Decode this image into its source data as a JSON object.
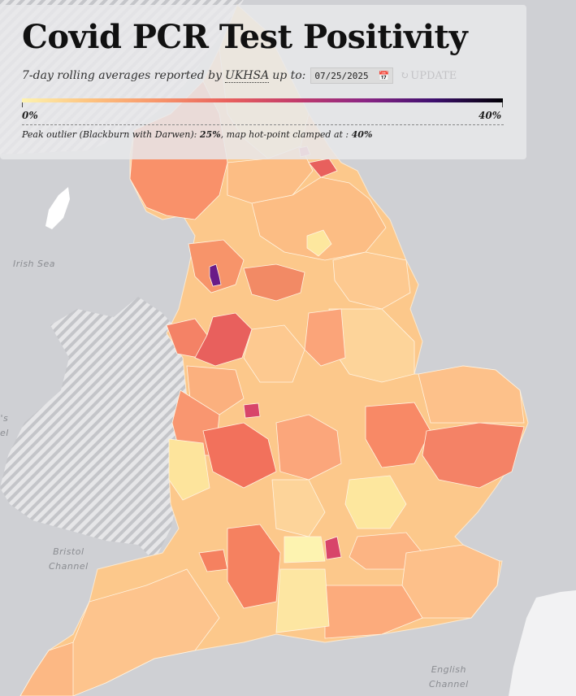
{
  "title": "Covid PCR Test Positivity",
  "subtitle": {
    "prefix": "7-day rolling averages reported by",
    "source_link": "UKHSA",
    "suffix": "up to:",
    "date_value": "07/25/2025",
    "update_label": "UPDATE"
  },
  "scale": {
    "min_label": "0%",
    "max_label": "40%",
    "colors": [
      "#fdf3b0",
      "#fdc27f",
      "#f7946a",
      "#e8605d",
      "#c23b6b",
      "#8a2584",
      "#3d0f6e",
      "#000004"
    ]
  },
  "note": {
    "prefix": "Peak outlier (Blackburn with Darwen):",
    "peak_value": "25%",
    "middle": ", map hot-point clamped at :",
    "clamp_value": "40%"
  },
  "sea_labels": {
    "irish_sea": "Irish Sea",
    "bristol_channel": "Bristol\nChannel",
    "english_channel": "English\nChannel",
    "partial": "'s\nel"
  },
  "map": {
    "base_fill": "#fcc88b",
    "sea_color": "#cfd0d4",
    "wales_color": "#e8e8ea",
    "scotland_color": "#e4e4e6"
  }
}
